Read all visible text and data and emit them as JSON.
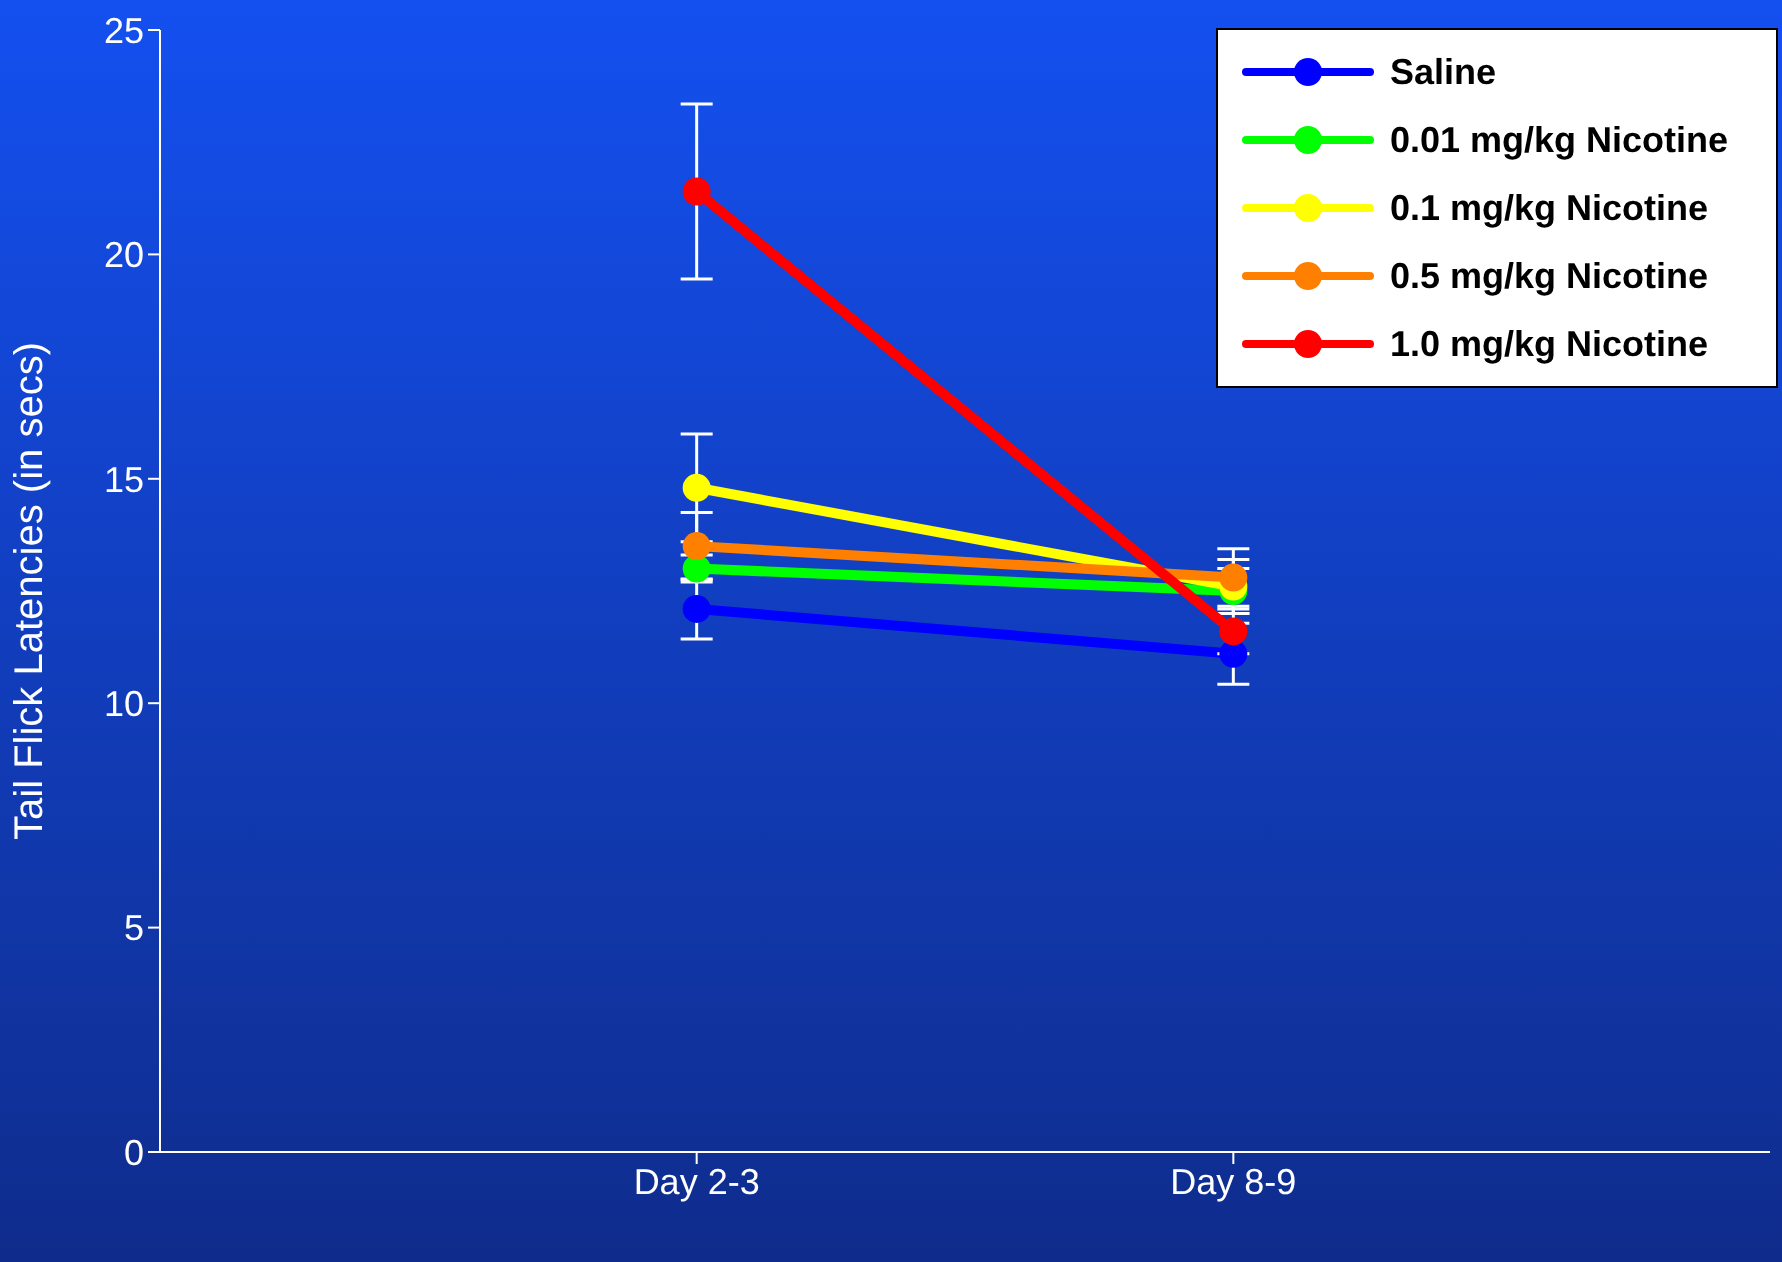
{
  "chart_data": {
    "type": "line",
    "ylabel": "Tail Flick Latencies (in secs)",
    "categories": [
      "Day 2-3",
      "Day 8-9"
    ],
    "series": [
      {
        "name": "Saline",
        "color": "#0000ff",
        "values": [
          12.1,
          11.1
        ],
        "errors": [
          0.67,
          0.68
        ]
      },
      {
        "name": "0.01 mg/kg Nicotine",
        "color": "#00ff00",
        "values": [
          13.0,
          12.5
        ],
        "errors": [
          0.3,
          0.5
        ]
      },
      {
        "name": "0.1 mg/kg Nicotine",
        "color": "#ffff00",
        "values": [
          14.8,
          12.6
        ],
        "errors": [
          1.2,
          0.6
        ]
      },
      {
        "name": "0.5 mg/kg Nicotine",
        "color": "#ff8000",
        "values": [
          13.5,
          12.8
        ],
        "errors": [
          0.75,
          0.64
        ]
      },
      {
        "name": "1.0 mg/kg Nicotine",
        "color": "#ff0000",
        "values": [
          21.4,
          11.6
        ],
        "errors": [
          1.95,
          0.5
        ]
      }
    ],
    "ylim": [
      0,
      25
    ],
    "yticks": [
      0,
      5,
      10,
      15,
      20,
      25
    ],
    "grid": false,
    "legend": "top right",
    "marker": "circle",
    "line_style": "solid"
  }
}
